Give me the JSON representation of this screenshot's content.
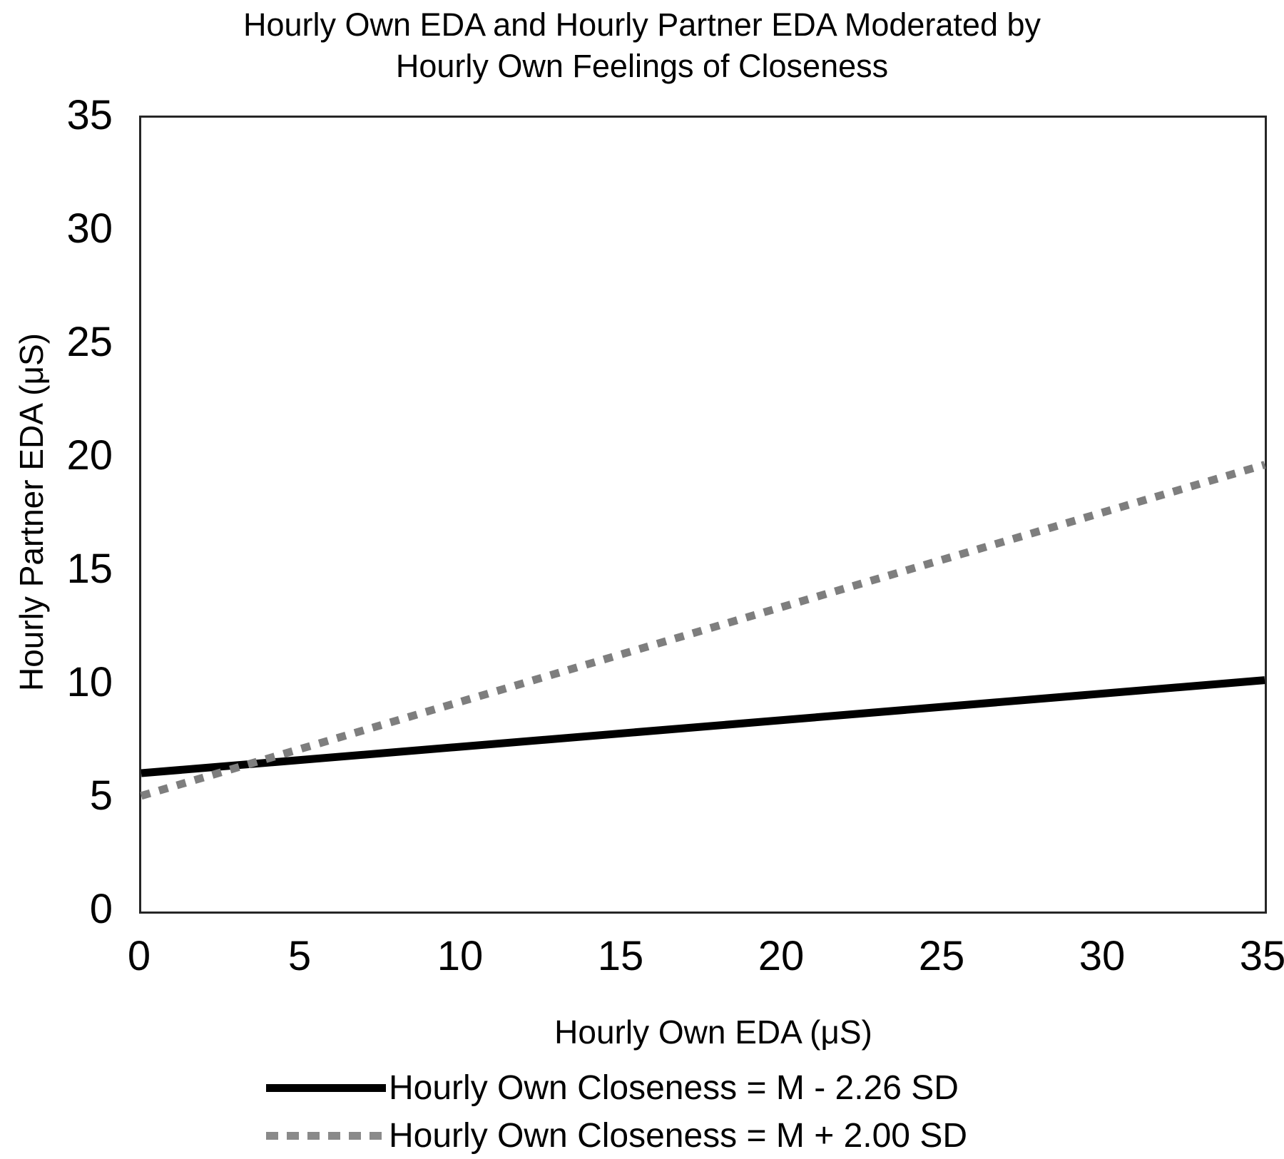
{
  "chart_data": {
    "type": "line",
    "title": "Hourly Own EDA and Hourly Partner EDA Moderated by\nHourly Own Feelings of Closeness",
    "xlabel": "Hourly Own EDA (μS)",
    "ylabel": "Hourly Partner EDA (μS)",
    "xlim": [
      0,
      35
    ],
    "ylim": [
      0,
      35
    ],
    "xticks": [
      0,
      5,
      10,
      15,
      20,
      25,
      30,
      35
    ],
    "yticks": [
      0,
      5,
      10,
      15,
      20,
      25,
      30,
      35
    ],
    "grid": false,
    "legend_position": "bottom",
    "series": [
      {
        "name": "Hourly Own Closeness = M - 2.26 SD",
        "style": "solid",
        "color": "#000000",
        "x": [
          0,
          35
        ],
        "y": [
          6.1,
          10.2
        ]
      },
      {
        "name": "Hourly Own Closeness = M + 2.00 SD",
        "style": "dashed",
        "color": "#7e7e7e",
        "x": [
          0,
          35
        ],
        "y": [
          5.1,
          19.7
        ]
      }
    ]
  }
}
